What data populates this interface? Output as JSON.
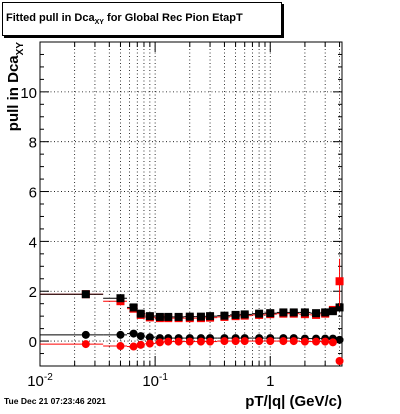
{
  "title": {
    "prefix": "Fitted pull in Dca",
    "subscript": "XY",
    "suffix": " for Global Rec Pion EtapT"
  },
  "timestamp": "Tue Dec 21 07:23:46 2021",
  "colors": {
    "red": "#ff0000",
    "black": "#000000",
    "grid": "#000000",
    "frame": "#000000"
  },
  "chart_data": {
    "type": "scatter",
    "title": "Fitted pull in Dca XY for Global Rec Pion EtapT",
    "xlabel": "pT/|q| (GeV/c)",
    "ylabel": "pull in Dca",
    "ylabel_subscript": "XY",
    "xscale": "log",
    "xlim": [
      0.01,
      4.2
    ],
    "ylim": [
      -1,
      12
    ],
    "grid": true,
    "legend": "none",
    "x_tick_labels": [
      {
        "x": 0.01,
        "base": "10",
        "exp": "-2"
      },
      {
        "x": 0.1,
        "base": "10",
        "exp": "-1"
      },
      {
        "x": 1,
        "base": "1",
        "exp": ""
      }
    ],
    "y_tick_labels": [
      "0",
      "2",
      "4",
      "6",
      "8",
      "10"
    ],
    "series": [
      {
        "color": "#ff0000",
        "marker": "square",
        "x": [
          0.025,
          0.05,
          0.065,
          0.075,
          0.09,
          0.11,
          0.13,
          0.16,
          0.2,
          0.25,
          0.3,
          0.4,
          0.5,
          0.6,
          0.8,
          1.0,
          1.3,
          1.6,
          2.0,
          2.5,
          3.0,
          3.5,
          4.0
        ],
        "y": [
          1.88,
          1.6,
          1.3,
          1.05,
          0.95,
          0.92,
          0.92,
          0.92,
          0.92,
          0.92,
          0.94,
          0.97,
          1.0,
          1.02,
          1.05,
          1.08,
          1.1,
          1.1,
          1.08,
          1.05,
          1.1,
          1.25,
          2.4
        ]
      },
      {
        "color": "#000000",
        "marker": "square",
        "x": [
          0.025,
          0.05,
          0.065,
          0.075,
          0.09,
          0.11,
          0.13,
          0.16,
          0.2,
          0.25,
          0.3,
          0.4,
          0.5,
          0.6,
          0.8,
          1.0,
          1.3,
          1.6,
          2.0,
          2.5,
          3.0,
          3.5,
          4.0
        ],
        "y": [
          1.88,
          1.72,
          1.35,
          1.1,
          1.0,
          0.97,
          0.97,
          0.97,
          0.98,
          0.98,
          1.0,
          1.02,
          1.05,
          1.07,
          1.1,
          1.12,
          1.15,
          1.15,
          1.15,
          1.12,
          1.15,
          1.2,
          1.35
        ]
      },
      {
        "color": "#000000",
        "marker": "circle",
        "x": [
          0.025,
          0.05,
          0.065,
          0.075,
          0.09,
          0.11,
          0.13,
          0.16,
          0.2,
          0.25,
          0.3,
          0.4,
          0.5,
          0.6,
          0.8,
          1.0,
          1.3,
          1.6,
          2.0,
          2.5,
          3.0,
          3.5,
          4.0
        ],
        "y": [
          0.25,
          0.25,
          0.3,
          0.2,
          0.15,
          0.12,
          0.12,
          0.12,
          0.12,
          0.12,
          0.12,
          0.12,
          0.12,
          0.12,
          0.12,
          0.12,
          0.12,
          0.12,
          0.1,
          0.1,
          0.1,
          0.1,
          0.05
        ]
      },
      {
        "color": "#ff0000",
        "marker": "circle",
        "x": [
          0.025,
          0.05,
          0.065,
          0.075,
          0.09,
          0.11,
          0.13,
          0.16,
          0.2,
          0.25,
          0.3,
          0.4,
          0.5,
          0.6,
          0.8,
          1.0,
          1.3,
          1.6,
          2.0,
          2.5,
          3.0,
          3.5,
          4.0
        ],
        "y": [
          -0.12,
          -0.2,
          -0.22,
          -0.15,
          -0.1,
          -0.05,
          -0.02,
          -0.02,
          -0.02,
          -0.02,
          -0.02,
          0.0,
          0.0,
          0.0,
          0.0,
          0.0,
          0.0,
          0.0,
          -0.02,
          -0.02,
          -0.02,
          -0.05,
          -0.8
        ]
      }
    ]
  }
}
